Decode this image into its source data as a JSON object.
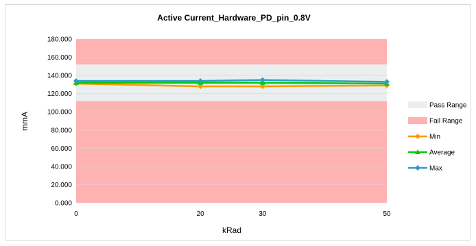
{
  "chart_data": {
    "type": "line",
    "title": "Active Current_Hardware_PD_pin_0.8V",
    "xlabel": "kRad",
    "ylabel": "mmA",
    "x": [
      0,
      20,
      30,
      50
    ],
    "xtick_labels": [
      "0",
      "20",
      "30",
      "50"
    ],
    "ylim": [
      0,
      180
    ],
    "yticks": [
      0,
      20,
      40,
      60,
      80,
      100,
      120,
      140,
      160,
      180
    ],
    "ytick_labels": [
      "0.000",
      "20.000",
      "40.000",
      "60.000",
      "80.000",
      "100.000",
      "120.000",
      "140.000",
      "160.000",
      "180.000"
    ],
    "grid": true,
    "legend_position": "right",
    "bands": [
      {
        "name": "Pass Range",
        "ymin": 112,
        "ymax": 152,
        "color": "#eaeeee"
      },
      {
        "name": "Fail Range",
        "ranges": [
          [
            0,
            112
          ],
          [
            152,
            180
          ]
        ],
        "color": "#ffb2b2"
      }
    ],
    "series": [
      {
        "name": "Min",
        "values": [
          131,
          128,
          128,
          129
        ],
        "color": "#ff9900",
        "marker": "diamond"
      },
      {
        "name": "Average",
        "values": [
          132,
          132,
          132,
          131
        ],
        "color": "#00cc00",
        "marker": "triangle"
      },
      {
        "name": "Max",
        "values": [
          134,
          134,
          135,
          133
        ],
        "color": "#3399cc",
        "marker": "diamond"
      }
    ]
  }
}
